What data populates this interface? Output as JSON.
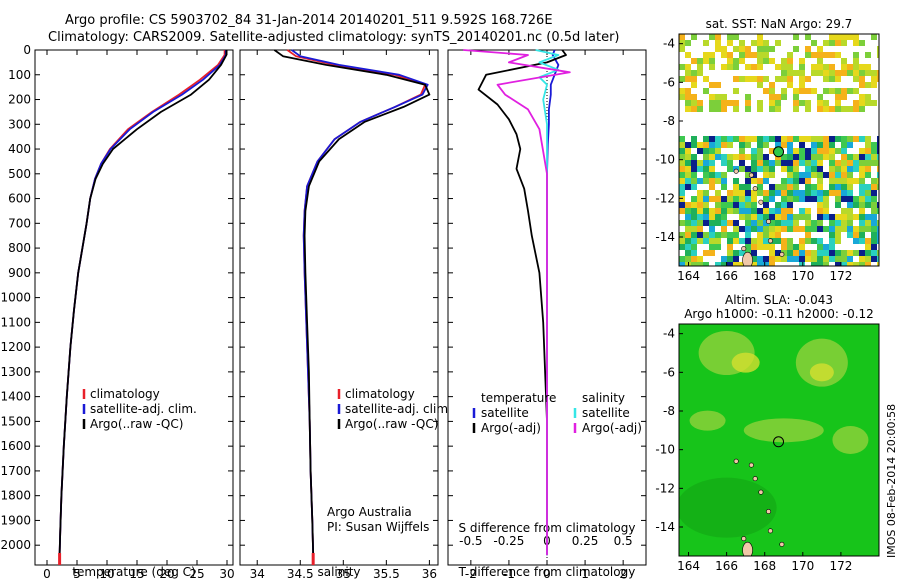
{
  "header": {
    "line1": "Argo profile: CS 5903702_84 31-Jan-2014 20140201_511 9.592S 168.726E",
    "line2": "Climatology: CARS2009. Satellite-adjusted climatology: synTS_20140201.nc (0.5d later)"
  },
  "colors": {
    "climatology": "#e8202a",
    "satellite": "#1a1ad6",
    "argo": "#000000",
    "sat_sal": "#35e6e6",
    "argo_sal": "#e020e0"
  },
  "credit": {
    "line1": "Argo Australia",
    "line2": "PI: Susan Wijffels"
  },
  "chart_data": [
    {
      "type": "line",
      "name": "temperature",
      "xlabel": "temperature (deg C)",
      "xlim": [
        -2,
        31
      ],
      "xticks": [
        0,
        5,
        10,
        15,
        20,
        25,
        30
      ],
      "ylim": [
        2080,
        0
      ],
      "yticks": [
        0,
        100,
        200,
        300,
        400,
        500,
        600,
        700,
        800,
        900,
        1000,
        1100,
        1200,
        1300,
        1400,
        1500,
        1600,
        1700,
        1800,
        1900,
        2000
      ],
      "legend": [
        "climatology",
        "satellite-adj. clim.",
        "Argo(..raw -QC)"
      ],
      "series": [
        {
          "name": "climatology",
          "color": "#e8202a",
          "x": [
            29.6,
            29.6,
            28.5,
            25.5,
            22.0,
            17.5,
            13.5,
            10.5,
            9.0,
            8.0,
            7.2,
            6.6,
            5.9,
            5.2,
            4.5,
            3.9,
            3.3,
            2.8,
            2.4,
            2.2,
            2.1
          ],
          "y": [
            0,
            20,
            60,
            120,
            180,
            250,
            320,
            400,
            460,
            520,
            600,
            700,
            800,
            900,
            1050,
            1200,
            1400,
            1600,
            1800,
            1950,
            2040
          ]
        },
        {
          "name": "satellite-adj. clim.",
          "color": "#1a1ad6",
          "x": [
            29.8,
            29.8,
            28.8,
            26.0,
            22.5,
            17.7,
            13.8,
            10.6,
            9.0,
            8.0,
            7.2,
            6.6,
            5.9,
            5.2,
            4.5,
            3.9,
            3.3,
            2.8,
            2.4,
            2.2,
            2.1
          ],
          "y": [
            0,
            20,
            60,
            120,
            180,
            250,
            320,
            400,
            460,
            520,
            600,
            700,
            800,
            900,
            1050,
            1200,
            1400,
            1600,
            1800,
            1950,
            2040
          ]
        },
        {
          "name": "Argo(..raw -QC)",
          "color": "#000000",
          "x": [
            29.9,
            29.9,
            29.0,
            27.0,
            24.0,
            19.0,
            15.0,
            11.0,
            9.3,
            8.1,
            7.2,
            6.6,
            5.9,
            5.2,
            4.5,
            3.9,
            3.3,
            2.8,
            2.4,
            2.2,
            2.1
          ],
          "y": [
            0,
            20,
            60,
            120,
            180,
            250,
            320,
            400,
            460,
            520,
            600,
            700,
            800,
            900,
            1050,
            1200,
            1400,
            1600,
            1800,
            1950,
            2040
          ]
        }
      ]
    },
    {
      "type": "line",
      "name": "salinity",
      "xlabel": "salinity",
      "xlim": [
        33.8,
        36.1
      ],
      "xticks": [
        34,
        34.5,
        35,
        35.5,
        36
      ],
      "ylim": [
        2080,
        0
      ],
      "legend": [
        "climatology",
        "satellite-adj. clim.",
        "Argo(..raw -QC)"
      ],
      "series": [
        {
          "name": "climatology",
          "color": "#e8202a",
          "x": [
            34.35,
            34.45,
            34.9,
            35.6,
            35.95,
            35.9,
            35.6,
            35.2,
            34.9,
            34.7,
            34.58,
            34.55,
            34.54,
            34.55,
            34.57,
            34.59,
            34.61,
            34.62,
            34.64,
            34.65
          ],
          "y": [
            0,
            25,
            60,
            100,
            140,
            180,
            230,
            290,
            360,
            450,
            550,
            650,
            750,
            900,
            1100,
            1300,
            1500,
            1700,
            1900,
            2040
          ]
        },
        {
          "name": "satellite-adj. clim.",
          "color": "#1a1ad6",
          "x": [
            34.4,
            34.5,
            34.95,
            35.65,
            35.98,
            35.92,
            35.6,
            35.2,
            34.9,
            34.7,
            34.58,
            34.55,
            34.54,
            34.55,
            34.57,
            34.59,
            34.61,
            34.62,
            34.64,
            34.65
          ],
          "y": [
            0,
            25,
            60,
            100,
            140,
            180,
            230,
            290,
            360,
            450,
            550,
            650,
            750,
            900,
            1100,
            1300,
            1500,
            1700,
            1900,
            2040
          ]
        },
        {
          "name": "Argo(..raw -QC)",
          "color": "#000000",
          "x": [
            34.2,
            34.3,
            34.8,
            35.5,
            35.95,
            36.0,
            35.7,
            35.25,
            34.95,
            34.72,
            34.6,
            34.56,
            34.55,
            34.56,
            34.58,
            34.6,
            34.61,
            34.62,
            34.64,
            34.65
          ],
          "y": [
            0,
            25,
            60,
            100,
            140,
            180,
            230,
            290,
            360,
            450,
            550,
            650,
            750,
            900,
            1100,
            1300,
            1500,
            1700,
            1900,
            2040
          ]
        }
      ]
    },
    {
      "type": "line",
      "name": "difference",
      "xlabel": "T difference from climatology",
      "xlabel_top": "S difference from climatology",
      "xlim": [
        -2.6,
        2.6
      ],
      "xticks": [
        -2,
        -1,
        0,
        1,
        2
      ],
      "xticks_top": [
        {
          "label": "-0.5",
          "at": -2
        },
        {
          "label": "-0.25",
          "at": -1
        },
        {
          "label": "0",
          "at": 0
        },
        {
          "label": "0.25",
          "at": 1
        },
        {
          "label": "0.5",
          "at": 2
        }
      ],
      "ylim": [
        2080,
        0
      ],
      "legend_temperature": {
        "title": "temperature",
        "items": [
          "satellite",
          "Argo(-adj)"
        ]
      },
      "legend_salinity": {
        "title": "salinity",
        "items": [
          "satellite",
          "Argo(-adj)"
        ]
      },
      "series": [
        {
          "name": "temperature satellite",
          "color": "#1a1ad6",
          "x": [
            0.2,
            0.15,
            0.3,
            0.2,
            0.1,
            0.1,
            0.05,
            0.05,
            0.02,
            0.0,
            0.0,
            0.0,
            0.0,
            0.0,
            0.0
          ],
          "y": [
            0,
            20,
            60,
            100,
            140,
            180,
            240,
            300,
            380,
            500,
            700,
            1000,
            1400,
            1800,
            2040
          ]
        },
        {
          "name": "temperature Argo(-adj)",
          "color": "#000000",
          "x": [
            0.4,
            0.5,
            0.0,
            -1.6,
            -1.8,
            -1.3,
            -1.0,
            -0.8,
            -0.7,
            -0.8,
            -0.6,
            -0.5,
            -0.4,
            -0.2,
            -0.1,
            0.0,
            0.0
          ],
          "y": [
            0,
            20,
            50,
            100,
            160,
            220,
            280,
            340,
            400,
            480,
            560,
            650,
            750,
            900,
            1100,
            1500,
            2040
          ]
        },
        {
          "name": "salinity satellite",
          "color": "#35e6e6",
          "x": [
            -0.3,
            0.3,
            -0.2,
            0.3,
            -0.2,
            0.0,
            -0.1,
            0.0,
            0.0,
            0.0,
            0.0
          ],
          "y": [
            0,
            20,
            50,
            80,
            110,
            140,
            200,
            300,
            500,
            1000,
            2040
          ]
        },
        {
          "name": "salinity Argo(-adj)",
          "color": "#e020e0",
          "x": [
            -2.2,
            -0.5,
            -1.0,
            0.6,
            -1.3,
            -1.1,
            -0.5,
            -0.2,
            0.0,
            0.0,
            0.0
          ],
          "y": [
            0,
            20,
            50,
            90,
            140,
            180,
            240,
            320,
            500,
            1000,
            2040
          ]
        }
      ]
    },
    {
      "type": "heatmap",
      "name": "sst-map",
      "title": "sat. SST: NaN Argo: 29.7",
      "xlim": [
        163.5,
        174
      ],
      "ylim": [
        -15.5,
        -3.5
      ],
      "xticks": [
        164,
        166,
        168,
        170,
        172
      ],
      "yticks": [
        -4,
        -6,
        -8,
        -10,
        -12,
        -14
      ],
      "argo_position": {
        "lon": 168.726,
        "lat": -9.592
      }
    },
    {
      "type": "heatmap",
      "name": "sla-map",
      "title": "Altim. SLA: -0.043",
      "subtitle": "Argo h1000: -0.11 h2000: -0.12",
      "xlim": [
        163.5,
        174
      ],
      "ylim": [
        -15.5,
        -3.5
      ],
      "xticks": [
        164,
        166,
        168,
        170,
        172
      ],
      "yticks": [
        -4,
        -6,
        -8,
        -10,
        -12,
        -14
      ],
      "argo_position": {
        "lon": 168.726,
        "lat": -9.592
      }
    }
  ],
  "stamp": "IMOS 08-Feb-2014 20:00:58"
}
